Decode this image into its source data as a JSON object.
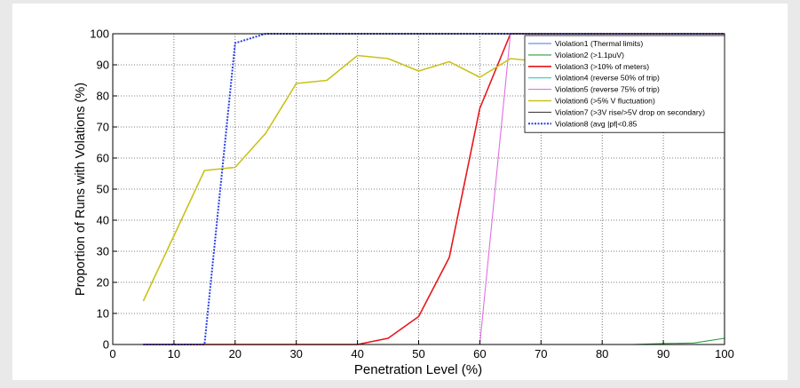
{
  "chart_data": {
    "type": "line",
    "xlabel": "Penetration Level (%)",
    "ylabel": "Proportion of Runs with Volations (%)",
    "xlim": [
      0,
      100
    ],
    "ylim": [
      0,
      100
    ],
    "xticks": [
      0,
      10,
      20,
      30,
      40,
      50,
      60,
      70,
      80,
      90,
      100
    ],
    "yticks": [
      0,
      10,
      20,
      30,
      40,
      50,
      60,
      70,
      80,
      90,
      100
    ],
    "grid": true,
    "legend_position": "top-right",
    "series": [
      {
        "name": "Violation1 (Thermal limits)",
        "color": "#4f6fe0",
        "style": "solid",
        "x": [
          5,
          10,
          15,
          20,
          25,
          30,
          35,
          40,
          45,
          50,
          55,
          60,
          65,
          70,
          75,
          80,
          85,
          90,
          95,
          100
        ],
        "y": [
          0,
          0,
          0,
          0,
          0,
          0,
          0,
          0,
          0,
          0,
          0,
          0,
          0,
          0,
          0,
          0,
          0,
          0,
          0,
          0
        ]
      },
      {
        "name": "Violation2 (>1.1puV)",
        "color": "#2f9e3f",
        "style": "solid",
        "x": [
          5,
          10,
          15,
          20,
          25,
          30,
          35,
          40,
          45,
          50,
          55,
          60,
          65,
          70,
          75,
          80,
          85,
          90,
          95,
          100
        ],
        "y": [
          0,
          0,
          0,
          0,
          0,
          0,
          0,
          0,
          0,
          0,
          0,
          0,
          0,
          0,
          0,
          0,
          0,
          0.3,
          0.5,
          2
        ]
      },
      {
        "name": "Violation3 (>10% of meters)",
        "color": "#e8161b",
        "style": "solid",
        "x": [
          5,
          10,
          15,
          20,
          25,
          30,
          35,
          40,
          45,
          50,
          55,
          60,
          65,
          70,
          75,
          80,
          85,
          90,
          95,
          100
        ],
        "y": [
          0,
          0,
          0,
          0,
          0,
          0,
          0,
          0,
          2,
          9,
          28,
          76,
          100,
          100,
          100,
          100,
          100,
          100,
          100,
          100
        ]
      },
      {
        "name": "Violation4 (reverse 50% of trip)",
        "color": "#33c7c7",
        "style": "solid",
        "x": [
          5,
          10,
          15,
          20,
          25,
          30,
          35,
          40,
          45,
          50,
          55,
          60,
          65,
          70,
          75,
          80,
          85,
          90,
          95,
          100
        ],
        "y": [
          0,
          0,
          0,
          0,
          0,
          0,
          0,
          0,
          0,
          0,
          0,
          0,
          0,
          0,
          0,
          0,
          0,
          0,
          0,
          0
        ]
      },
      {
        "name": "Violation5 (reverse 75% of trip)",
        "color": "#e070e0",
        "style": "solid",
        "x": [
          5,
          10,
          15,
          20,
          25,
          30,
          35,
          40,
          45,
          50,
          55,
          60,
          65,
          70,
          75,
          80,
          85,
          90,
          95,
          100
        ],
        "y": [
          0,
          0,
          0,
          0,
          0,
          0,
          0,
          0,
          0,
          0,
          0,
          0,
          100,
          100,
          100,
          100,
          100,
          100,
          100,
          100
        ]
      },
      {
        "name": "Violation6 (>5% V fluctuation)",
        "color": "#c9c21a",
        "style": "solid",
        "x": [
          5,
          10,
          15,
          20,
          25,
          30,
          35,
          40,
          45,
          50,
          55,
          60,
          65,
          70,
          75,
          80,
          85,
          90,
          95,
          100
        ],
        "y": [
          14,
          35,
          56,
          57,
          68,
          84,
          85,
          93,
          92,
          88,
          91,
          86,
          92,
          91,
          91,
          91,
          91,
          91,
          91,
          91
        ]
      },
      {
        "name": "Violation7 (>3V rise/>5V drop on secondary)",
        "color": "#444444",
        "style": "solid",
        "x": [
          5,
          10,
          15,
          20,
          25,
          30,
          35,
          40,
          45,
          50,
          55,
          60,
          65,
          70,
          75,
          80,
          85,
          90,
          95,
          100
        ],
        "y": [
          0,
          0,
          0,
          0,
          0,
          0,
          0,
          0,
          0,
          0,
          0,
          0,
          0,
          0,
          0,
          0,
          0,
          0,
          0,
          0
        ]
      },
      {
        "name": "Violation8 (avg |pf|<0.85",
        "color": "#2a3fe8",
        "style": "dotted",
        "x": [
          5,
          10,
          15,
          20,
          25,
          30,
          35,
          40,
          45,
          50,
          55,
          60,
          65,
          70,
          75,
          80,
          85,
          90,
          95,
          100
        ],
        "y": [
          0,
          0,
          0,
          97,
          100,
          100,
          100,
          100,
          100,
          100,
          100,
          100,
          100,
          100,
          100,
          100,
          100,
          100,
          100,
          100
        ]
      }
    ]
  }
}
